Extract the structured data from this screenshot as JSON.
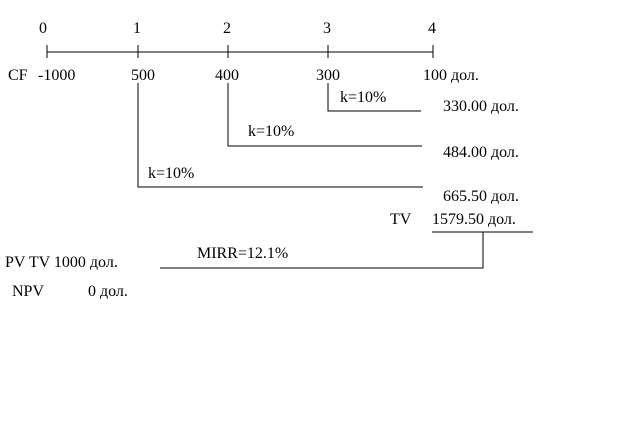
{
  "timeline": {
    "periods": [
      "0",
      "1",
      "2",
      "3",
      "4"
    ],
    "cash_flow_label": "CF",
    "cash_flows": [
      "-1000",
      "500",
      "400",
      "300",
      "100 дол."
    ]
  },
  "compounding": [
    {
      "rate": "k=10%",
      "future_value": "330.00 дол."
    },
    {
      "rate": "k=10%",
      "future_value": "484.00 дол."
    },
    {
      "rate": "k=10%",
      "future_value": "665.50 дол."
    }
  ],
  "terminal": {
    "label": "TV",
    "value": "1579.50 дол."
  },
  "mirr": "MIRR=12.1%",
  "pv_tv": "PV TV 1000 дол.",
  "npv": {
    "label": "NPV",
    "value": "0 дол."
  }
}
